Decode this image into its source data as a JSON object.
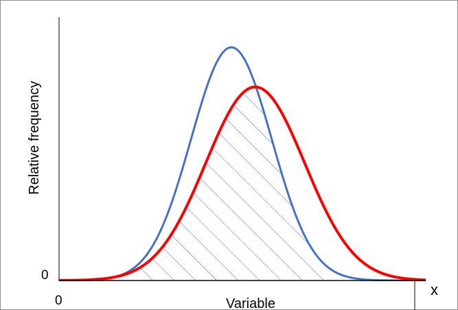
{
  "chart_data": {
    "type": "line",
    "xlabel": "Variable",
    "ylabel": "Relative frequency",
    "x_origin_label": "0",
    "y_origin_label": "0",
    "x_axis_end_label": "x",
    "grid": false,
    "series": [
      {
        "color": "#4472C4",
        "line_width": "thin",
        "mean": 4.7,
        "sd": 1.1,
        "peak": 1.0
      },
      {
        "color": "#FF0000",
        "line_width": "thick",
        "mean": 5.35,
        "sd": 1.35,
        "peak": 0.83
      }
    ],
    "shaded_region": {
      "description_color": "#4472C4",
      "pattern": "diagonal-hatch",
      "x_from": 2.1,
      "x_to": 7.3
    },
    "xlim": [
      0,
      10
    ],
    "ylim": [
      0,
      1.0
    ]
  }
}
